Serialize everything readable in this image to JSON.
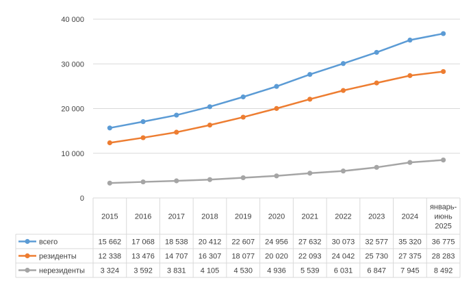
{
  "chart_data": {
    "type": "line",
    "categories": [
      "2015",
      "2016",
      "2017",
      "2018",
      "2019",
      "2020",
      "2021",
      "2022",
      "2023",
      "2024",
      "январь-июнь 2025"
    ],
    "category_lines": [
      [
        "2015"
      ],
      [
        "2016"
      ],
      [
        "2017"
      ],
      [
        "2018"
      ],
      [
        "2019"
      ],
      [
        "2020"
      ],
      [
        "2021"
      ],
      [
        "2022"
      ],
      [
        "2023"
      ],
      [
        "2024"
      ],
      [
        "январь-",
        "июнь",
        "2025"
      ]
    ],
    "y_ticks": [
      0,
      10000,
      20000,
      30000,
      40000
    ],
    "y_tick_labels": [
      "0",
      "10 000",
      "20 000",
      "30 000",
      "40 000"
    ],
    "ylim": [
      0,
      40000
    ],
    "grid": true,
    "legend": "data-table",
    "series": [
      {
        "name": "всего",
        "color": "#5b9bd5",
        "values": [
          15662,
          17068,
          18538,
          20412,
          22607,
          24956,
          27632,
          30073,
          32577,
          35320,
          36775
        ],
        "labels": [
          "15 662",
          "17 068",
          "18 538",
          "20 412",
          "22 607",
          "24 956",
          "27 632",
          "30 073",
          "32 577",
          "35 320",
          "36 775"
        ]
      },
      {
        "name": "резиденты",
        "color": "#ed7d31",
        "values": [
          12338,
          13476,
          14707,
          16307,
          18077,
          20020,
          22093,
          24042,
          25730,
          27375,
          28283
        ],
        "labels": [
          "12 338",
          "13 476",
          "14 707",
          "16 307",
          "18 077",
          "20 020",
          "22 093",
          "24 042",
          "25 730",
          "27 375",
          "28 283"
        ]
      },
      {
        "name": "нерезиденты",
        "color": "#a5a5a5",
        "values": [
          3324,
          3592,
          3831,
          4105,
          4530,
          4936,
          5539,
          6031,
          6847,
          7945,
          8492
        ],
        "labels": [
          "3 324",
          "3 592",
          "3 831",
          "4 105",
          "4 530",
          "4 936",
          "5 539",
          "6 031",
          "6 847",
          "7 945",
          "8 492"
        ]
      }
    ]
  }
}
